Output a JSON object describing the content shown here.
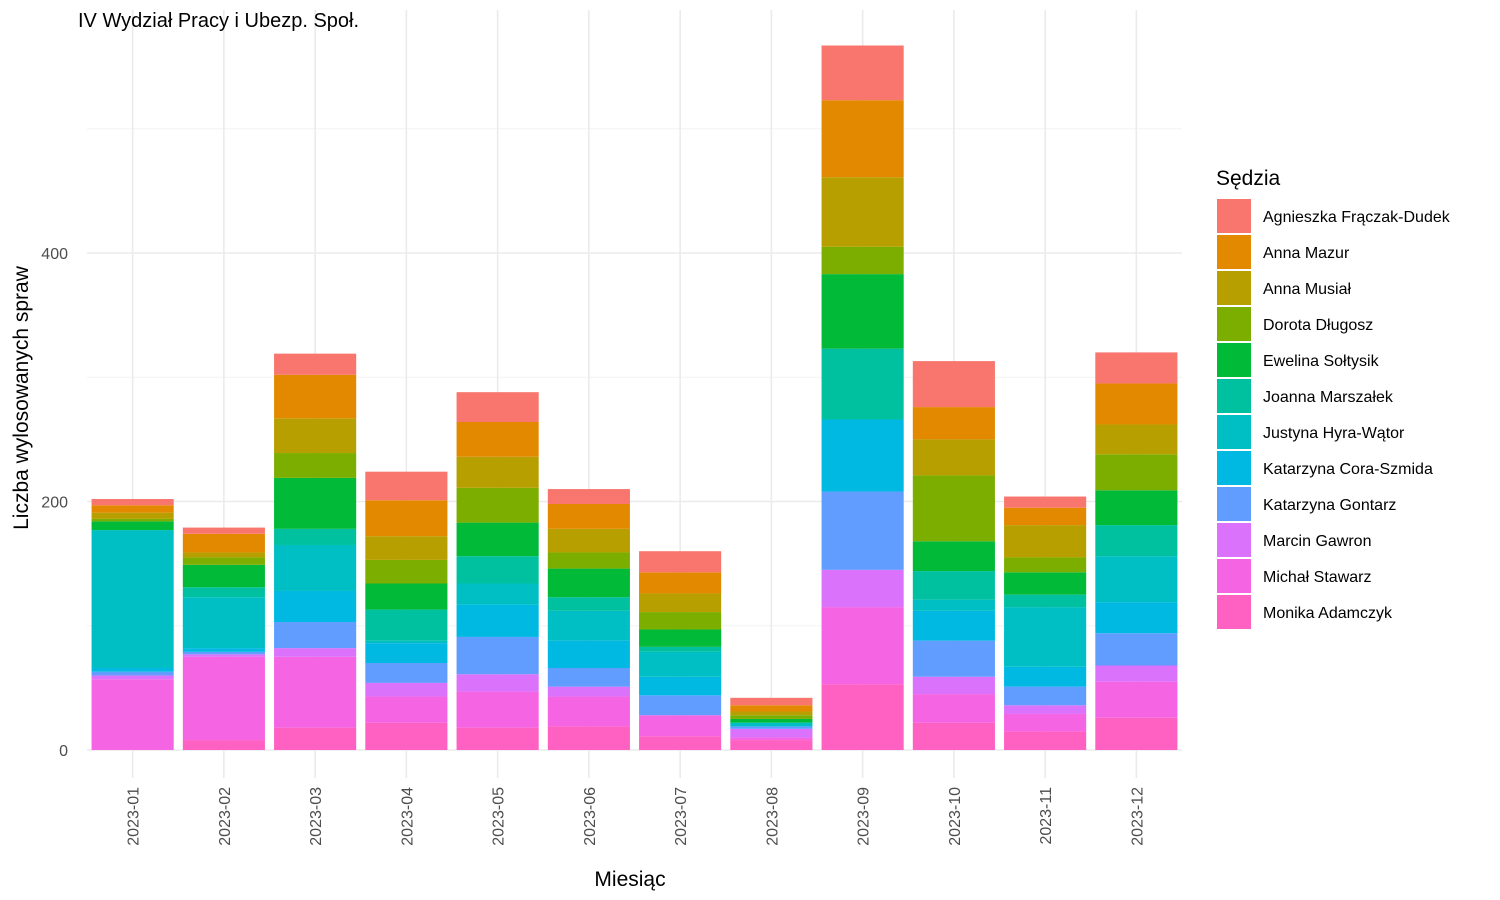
{
  "chart_data": {
    "type": "bar",
    "stacked": true,
    "title": "IV Wydział Pracy i Ubezp. Społ.",
    "xlabel": "Miesiąc",
    "ylabel": "Liczba wylosowanych spraw",
    "ylim": [
      0,
      570
    ],
    "yticks": [
      0,
      200,
      400
    ],
    "grid": true,
    "legend_title": "Sędzia",
    "legend_position": "right",
    "categories": [
      "2023-01",
      "2023-02",
      "2023-03",
      "2023-04",
      "2023-05",
      "2023-06",
      "2023-07",
      "2023-08",
      "2023-09",
      "2023-10",
      "2023-11",
      "2023-12"
    ],
    "series": [
      {
        "name": "Monika Adamczyk",
        "color": "#FF61C3",
        "values": [
          0,
          8,
          18,
          22,
          18,
          19,
          11,
          8,
          53,
          22,
          15,
          26
        ]
      },
      {
        "name": "Michał Stawarz",
        "color": "#F564E3",
        "values": [
          57,
          67,
          57,
          21,
          29,
          24,
          17,
          2,
          62,
          23,
          14,
          29
        ]
      },
      {
        "name": "Marcin Gawron",
        "color": "#DB72FB",
        "values": [
          3,
          2,
          7,
          11,
          14,
          8,
          0,
          7,
          30,
          14,
          7,
          13
        ]
      },
      {
        "name": "Katarzyna Gontarz",
        "color": "#619CFF",
        "values": [
          3,
          2,
          21,
          16,
          30,
          15,
          16,
          2,
          63,
          29,
          15,
          26
        ]
      },
      {
        "name": "Katarzyna Cora-Szmida",
        "color": "#00B9E3",
        "values": [
          3,
          3,
          25,
          16,
          26,
          22,
          15,
          0,
          58,
          24,
          16,
          25
        ]
      },
      {
        "name": "Justyna Hyra-Wątor",
        "color": "#00BFC4",
        "values": [
          111,
          41,
          37,
          2,
          17,
          24,
          20,
          3,
          0,
          9,
          48,
          37
        ]
      },
      {
        "name": "Joanna Marszałek",
        "color": "#00C19F",
        "values": [
          0,
          8,
          13,
          25,
          22,
          11,
          4,
          0,
          57,
          23,
          10,
          25
        ]
      },
      {
        "name": "Ewelina Sołtysik",
        "color": "#00BA38",
        "values": [
          7,
          18,
          41,
          21,
          27,
          23,
          14,
          3,
          60,
          24,
          18,
          28
        ]
      },
      {
        "name": "Dorota Długosz",
        "color": "#7CAE00",
        "values": [
          2,
          6,
          20,
          19,
          28,
          13,
          14,
          3,
          22,
          53,
          12,
          29
        ]
      },
      {
        "name": "Anna Musiał",
        "color": "#B79F00",
        "values": [
          5,
          4,
          28,
          19,
          25,
          19,
          15,
          3,
          56,
          29,
          26,
          24
        ]
      },
      {
        "name": "Anna Mazur",
        "color": "#E38900",
        "values": [
          6,
          15,
          35,
          29,
          28,
          20,
          17,
          5,
          62,
          26,
          14,
          33
        ]
      },
      {
        "name": "Agnieszka Frączak-Dudek",
        "color": "#F8766D",
        "values": [
          5,
          5,
          17,
          23,
          24,
          12,
          17,
          6,
          44,
          37,
          9,
          25
        ]
      }
    ]
  }
}
